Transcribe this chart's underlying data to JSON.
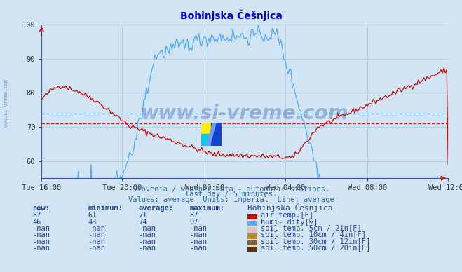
{
  "title": "Bohinjska Češnjica",
  "title_color": "#0000cc",
  "bg_color": "#d0e4f4",
  "plot_bg_color": "#d0e4f4",
  "grid_color": "#b8c8dc",
  "xlabel_ticks": [
    "Tue 16:00",
    "Tue 20:00",
    "Wed 00:00",
    "Wed 04:00",
    "Wed 08:00",
    "Wed 12:00"
  ],
  "ylim": [
    55,
    100
  ],
  "yticks": [
    60,
    70,
    80,
    90,
    100
  ],
  "air_temp_color": "#cc0000",
  "humidity_color": "#55aaee",
  "avg_air_temp": 71,
  "avg_humidity": 74,
  "watermark_text": "www.si-vreme.com",
  "watermark_color": "#1a3a8a",
  "watermark_alpha": 0.3,
  "subtitle1": "Slovenia / weather data - automatic stations.",
  "subtitle2": "last day / 5 minutes.",
  "subtitle3": "Values: average  Units: imperial  Line: average",
  "subtitle_color": "#336699",
  "table_header": [
    "now:",
    "minimum:",
    "average:",
    "maximum:",
    "Bohinjska Češnjica"
  ],
  "table_rows": [
    {
      "now": "87",
      "min": "61",
      "avg": "71",
      "max": "87",
      "color": "#cc0000",
      "label": "air temp.[F]"
    },
    {
      "now": "46",
      "min": "43",
      "avg": "74",
      "max": "97",
      "color": "#55aaee",
      "label": "humi- dity[%]"
    },
    {
      "now": "-nan",
      "min": "-nan",
      "avg": "-nan",
      "max": "-nan",
      "color": "#ddbfbf",
      "label": "soil temp. 5cm / 2in[F]"
    },
    {
      "now": "-nan",
      "min": "-nan",
      "avg": "-nan",
      "max": "-nan",
      "color": "#bb8833",
      "label": "soil temp. 10cm / 4in[F]"
    },
    {
      "now": "-nan",
      "min": "-nan",
      "avg": "-nan",
      "max": "-nan",
      "color": "#886622",
      "label": "soil temp. 30cm / 12in[F]"
    },
    {
      "now": "-nan",
      "min": "-nan",
      "avg": "-nan",
      "max": "-nan",
      "color": "#553311",
      "label": "soil temp. 50cm / 20in[F]"
    }
  ],
  "n_points": 288,
  "figsize": [
    6.59,
    3.88
  ],
  "dpi": 100
}
